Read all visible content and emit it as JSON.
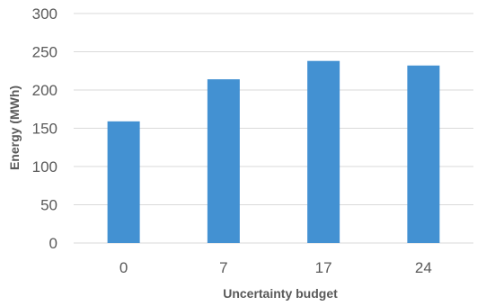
{
  "chart_data": {
    "type": "bar",
    "categories": [
      "0",
      "7",
      "17",
      "24"
    ],
    "values": [
      159,
      214,
      238,
      232
    ],
    "xlabel": "Uncertainty budget",
    "ylabel": "Energy (MWh)",
    "ylim": [
      0,
      300
    ],
    "yticks": [
      0,
      50,
      100,
      150,
      200,
      250,
      300
    ],
    "grid": true,
    "bar_color": "#4391d2",
    "grid_color": "#d9d9d9",
    "text_color": "#595959"
  }
}
